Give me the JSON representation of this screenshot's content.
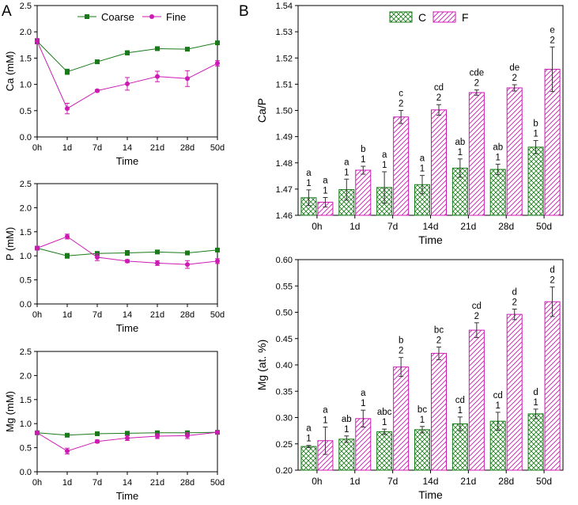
{
  "panel_labels": [
    "A",
    "B"
  ],
  "colors": {
    "coarse": "#1a7a1a",
    "fine": "#cc1ab3"
  },
  "chart_data": [
    {
      "type": "line",
      "title": "",
      "xlabel": "Time",
      "ylabel": "Ca (mM)",
      "categories": [
        "0h",
        "1d",
        "7d",
        "14",
        "21d",
        "28d",
        "50d"
      ],
      "ylim": [
        0,
        2.5
      ],
      "yticks": [
        "0.0",
        "0.5",
        "1.0",
        "1.5",
        "2.0",
        "2.5"
      ],
      "legend": [
        "Coarse",
        "Fine"
      ],
      "series": [
        {
          "name": "Coarse",
          "values": [
            1.82,
            1.24,
            1.43,
            1.6,
            1.68,
            1.67,
            1.79
          ],
          "err": [
            0.05,
            0.05,
            0.03,
            0.04,
            0.02,
            0.02,
            0.02
          ]
        },
        {
          "name": "Fine",
          "values": [
            1.82,
            0.54,
            0.88,
            1.01,
            1.15,
            1.11,
            1.4
          ],
          "err": [
            0.05,
            0.1,
            0.02,
            0.12,
            0.1,
            0.15,
            0.05
          ]
        }
      ]
    },
    {
      "type": "line",
      "title": "",
      "xlabel": "Time",
      "ylabel": "P (mM)",
      "categories": [
        "0h",
        "1d",
        "7d",
        "14",
        "21d",
        "28d",
        "50d"
      ],
      "ylim": [
        0,
        2.5
      ],
      "yticks": [
        "0.0",
        "0.5",
        "1.0",
        "1.5",
        "2.0",
        "2.5"
      ],
      "series": [
        {
          "name": "Coarse",
          "values": [
            1.16,
            1.0,
            1.05,
            1.06,
            1.08,
            1.06,
            1.12
          ],
          "err": [
            0.04,
            0.05,
            0.03,
            0.05,
            0.03,
            0.02,
            0.03
          ]
        },
        {
          "name": "Fine",
          "values": [
            1.16,
            1.4,
            0.97,
            0.89,
            0.85,
            0.82,
            0.89
          ],
          "err": [
            0.04,
            0.05,
            0.07,
            0.03,
            0.05,
            0.08,
            0.05
          ]
        }
      ]
    },
    {
      "type": "line",
      "title": "",
      "xlabel": "Time",
      "ylabel": "Mg (mM)",
      "categories": [
        "0h",
        "1d",
        "7d",
        "14",
        "21d",
        "28d",
        "50d"
      ],
      "ylim": [
        0,
        2.5
      ],
      "yticks": [
        "0.0",
        "0.5",
        "1.0",
        "1.5",
        "2.0",
        "2.5"
      ],
      "series": [
        {
          "name": "Coarse",
          "values": [
            0.81,
            0.76,
            0.79,
            0.8,
            0.81,
            0.81,
            0.82
          ],
          "err": [
            0.03,
            0.03,
            0.02,
            0.02,
            0.02,
            0.02,
            0.02
          ]
        },
        {
          "name": "Fine",
          "values": [
            0.81,
            0.43,
            0.63,
            0.7,
            0.74,
            0.75,
            0.82
          ],
          "err": [
            0.03,
            0.06,
            0.03,
            0.05,
            0.05,
            0.06,
            0.03
          ]
        }
      ]
    },
    {
      "type": "bar",
      "title": "",
      "xlabel": "Time",
      "ylabel": "Ca/P",
      "categories": [
        "0h",
        "1d",
        "7d",
        "14d",
        "21d",
        "28d",
        "50d"
      ],
      "ylim": [
        1.46,
        1.54
      ],
      "yticks": [
        "1.46",
        "1.47",
        "1.48",
        "1.49",
        "1.50",
        "1.51",
        "1.52",
        "1.53",
        "1.54"
      ],
      "legend": [
        "C",
        "F"
      ],
      "series": [
        {
          "name": "C",
          "values": [
            1.4667,
            1.4698,
            1.4706,
            1.4717,
            1.478,
            1.4775,
            1.486
          ],
          "err": [
            0.003,
            0.004,
            0.006,
            0.0035,
            0.0035,
            0.002,
            0.0025
          ],
          "labels": [
            [
              "a",
              "1"
            ],
            [
              "a",
              "1"
            ],
            [
              "a",
              "1"
            ],
            [
              "a",
              "1"
            ],
            [
              "ab",
              "1"
            ],
            [
              "ab",
              "1"
            ],
            [
              "b",
              "1"
            ]
          ]
        },
        {
          "name": "F",
          "values": [
            1.465,
            1.4772,
            1.4975,
            1.5002,
            1.5068,
            1.5086,
            1.5157
          ],
          "err": [
            0.0018,
            0.0015,
            0.0025,
            0.002,
            0.001,
            0.0012,
            0.0085
          ],
          "labels": [
            [
              "a",
              "1"
            ],
            [
              "b",
              "1"
            ],
            [
              "c",
              "2"
            ],
            [
              "cd",
              "2"
            ],
            [
              "cde",
              "2"
            ],
            [
              "de",
              "2"
            ],
            [
              "e",
              "2"
            ]
          ]
        }
      ]
    },
    {
      "type": "bar",
      "title": "",
      "xlabel": "Time",
      "ylabel": "Mg (at. %)",
      "categories": [
        "0h",
        "1d",
        "7d",
        "14d",
        "21d",
        "28d",
        "50d"
      ],
      "ylim": [
        0.2,
        0.6
      ],
      "yticks": [
        "0.20",
        "0.25",
        "0.30",
        "0.35",
        "0.40",
        "0.45",
        "0.50",
        "0.55",
        "0.60"
      ],
      "series": [
        {
          "name": "C",
          "values": [
            0.245,
            0.259,
            0.273,
            0.277,
            0.288,
            0.293,
            0.307
          ],
          "err": [
            0.002,
            0.006,
            0.005,
            0.006,
            0.013,
            0.017,
            0.009
          ],
          "labels": [
            [
              "a",
              "1"
            ],
            [
              "ab",
              "1"
            ],
            [
              "abc",
              "1"
            ],
            [
              "bc",
              "1"
            ],
            [
              "cd",
              "1"
            ],
            [
              "cd",
              "1"
            ],
            [
              "d",
              "1"
            ]
          ]
        },
        {
          "name": "F",
          "values": [
            0.256,
            0.298,
            0.396,
            0.422,
            0.466,
            0.496,
            0.52
          ],
          "err": [
            0.026,
            0.016,
            0.018,
            0.012,
            0.014,
            0.01,
            0.028
          ],
          "labels": [
            [
              "a",
              "1"
            ],
            [
              "a",
              "1"
            ],
            [
              "b",
              "2"
            ],
            [
              "bc",
              "2"
            ],
            [
              "cd",
              "2"
            ],
            [
              "d",
              "2"
            ],
            [
              "d",
              "2"
            ]
          ]
        }
      ]
    }
  ]
}
